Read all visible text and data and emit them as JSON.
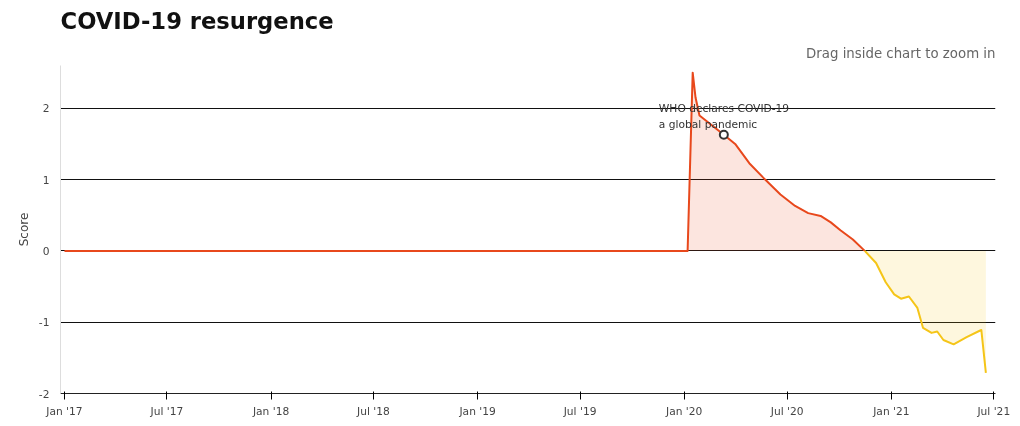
{
  "chart_data": {
    "type": "area",
    "title": "COVID-19 resurgence",
    "ylabel": "Score",
    "annotations": [
      {
        "text": "WHO declares COVID-19 a global pandemic",
        "x": "2020-03-11",
        "y": 1.63
      },
      "Drag inside chart to zoom in"
    ],
    "series": [
      {
        "color": "#e8481c",
        "x": [
          "2017-01-01",
          "2020-01-07",
          "2020-01-16",
          "2020-01-21",
          "2020-01-28",
          "2020-03-11",
          "2020-03-31",
          "2020-04-25",
          "2020-05-23",
          "2020-06-19",
          "2020-07-15",
          "2020-08-07",
          "2020-08-29",
          "2020-09-16",
          "2020-10-03",
          "2020-10-25",
          "2020-11-15"
        ],
        "values": [
          0,
          0,
          2.5,
          2.15,
          1.9,
          1.63,
          1.5,
          1.23,
          1.0,
          0.79,
          0.63,
          0.53,
          0.49,
          0.4,
          0.29,
          0.16,
          0
        ]
      },
      {
        "color": "#f5c518",
        "x": [
          "2020-11-15",
          "2020-12-05",
          "2020-12-22",
          "2021-01-06",
          "2021-01-18",
          "2021-02-01",
          "2021-02-16",
          "2021-02-26",
          "2021-03-13",
          "2021-03-23",
          "2021-04-03",
          "2021-04-21",
          "2021-05-14",
          "2021-06-06",
          "2021-06-09",
          "2021-06-17"
        ],
        "values": [
          0,
          -0.17,
          -0.44,
          -0.61,
          -0.67,
          -0.64,
          -0.8,
          -1.08,
          -1.15,
          -1.13,
          -1.25,
          -1.31,
          -1.21,
          -1.12,
          -1.11,
          -1.71
        ]
      }
    ],
    "xlim": [
      "2016-12-25",
      "2021-07-04"
    ],
    "xticks": [
      {
        "value": "2017-01-01",
        "label": "Jan '17"
      },
      {
        "value": "2017-07-01",
        "label": "Jul '17"
      },
      {
        "value": "2018-01-01",
        "label": "Jan '18"
      },
      {
        "value": "2018-07-01",
        "label": "Jul '18"
      },
      {
        "value": "2019-01-01",
        "label": "Jan '19"
      },
      {
        "value": "2019-07-01",
        "label": "Jul '19"
      },
      {
        "value": "2020-01-01",
        "label": "Jan '20"
      },
      {
        "value": "2020-07-01",
        "label": "Jul '20"
      },
      {
        "value": "2021-01-01",
        "label": "Jan '21"
      },
      {
        "value": "2021-07-01",
        "label": "Jul '21"
      }
    ],
    "ylim": [
      -2,
      2.6
    ],
    "yticks": [
      -2,
      -1,
      0,
      1,
      2
    ],
    "grid": "y",
    "marker": "none",
    "line_style": "solid"
  }
}
